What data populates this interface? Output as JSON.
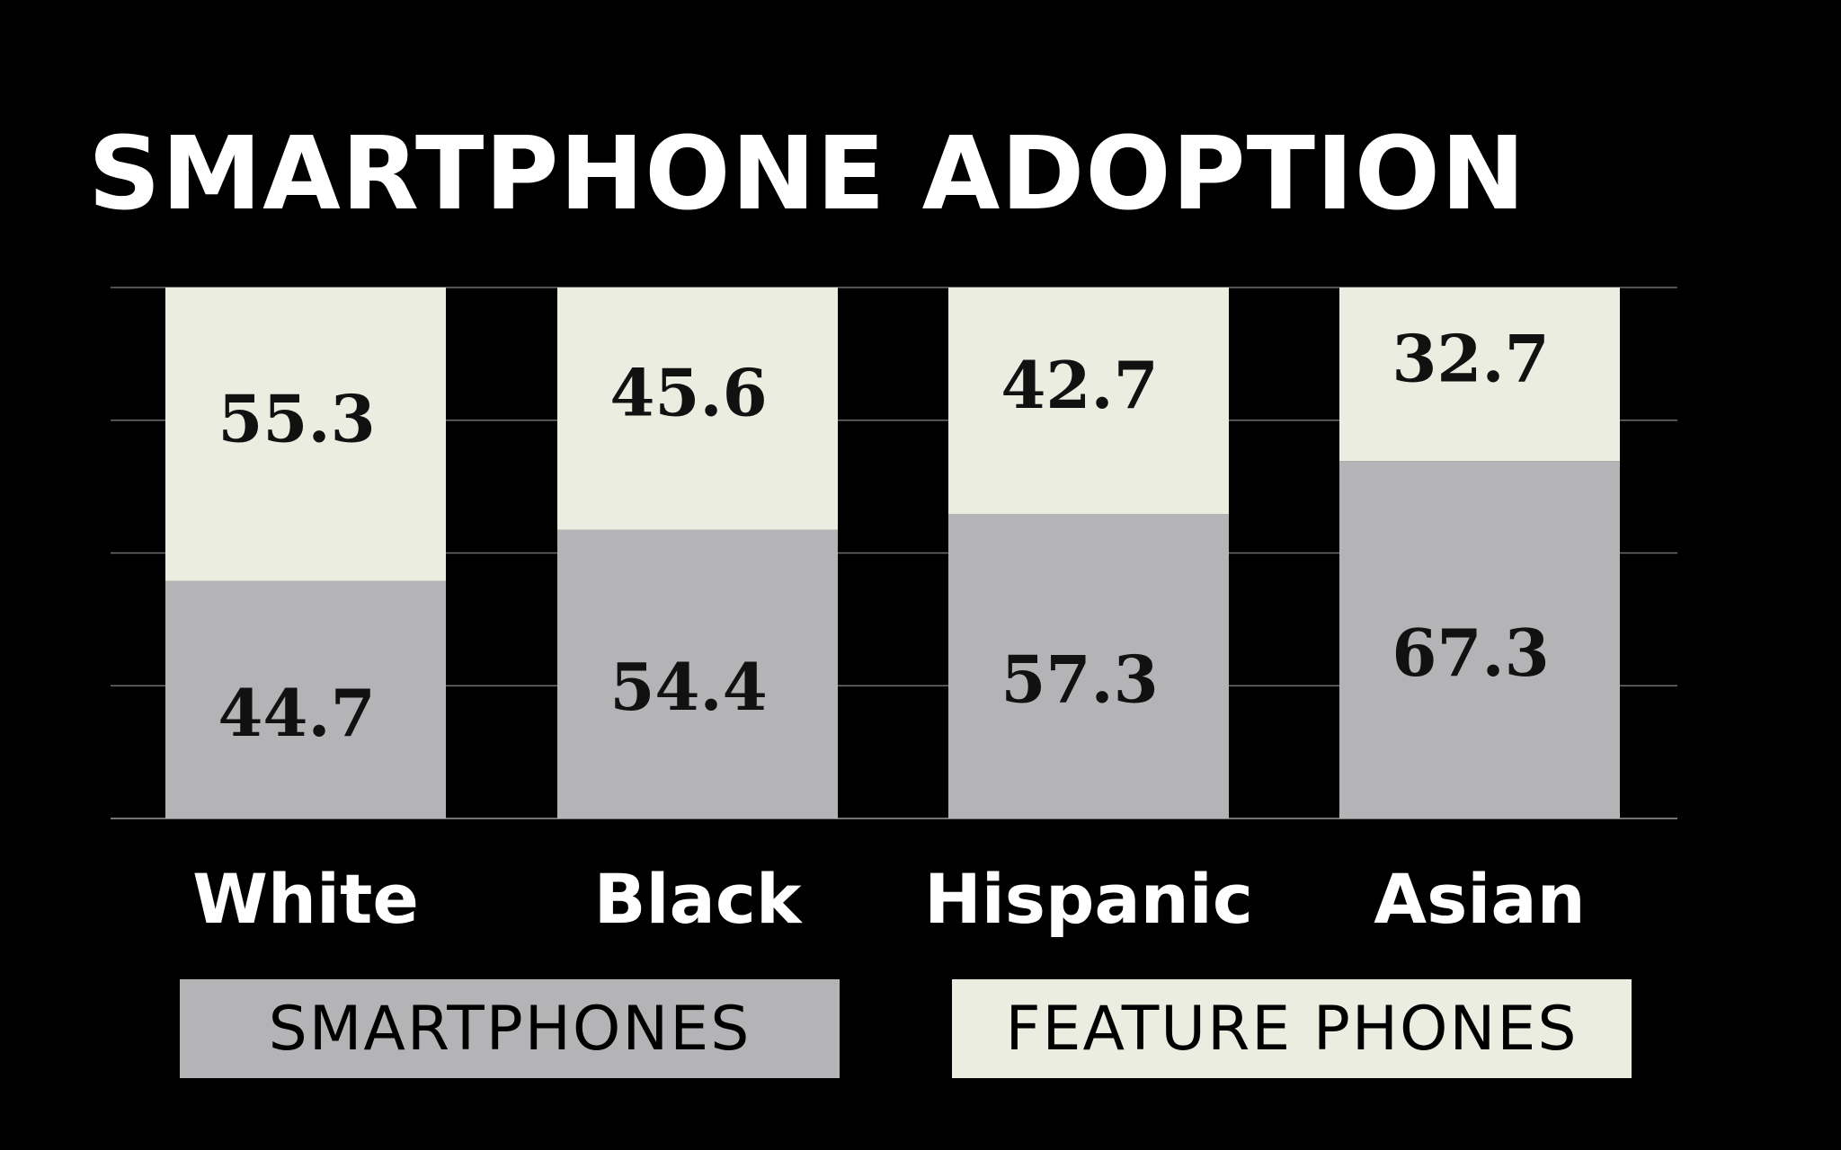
{
  "chart_data": {
    "type": "bar",
    "stacked": true,
    "title": "SMARTPHONE ADOPTION",
    "categories": [
      "White",
      "Black",
      "Hispanic",
      "Asian"
    ],
    "series": [
      {
        "name": "SMARTPHONES",
        "values": [
          44.7,
          54.4,
          57.3,
          67.3
        ],
        "color": "#b4b4b6",
        "value_labels": [
          "44.7",
          "54.4",
          "57.3",
          "67.3"
        ]
      },
      {
        "name": "FEATURE PHONES",
        "values": [
          55.3,
          45.6,
          42.7,
          32.7
        ],
        "color": "#eaeddf",
        "value_labels": [
          "55.3",
          "45.6",
          "42.7",
          "32.7"
        ]
      }
    ],
    "ylim": [
      0,
      100
    ],
    "grid": true,
    "legend_position": "bottom"
  },
  "colors": {
    "background": "#000000",
    "grid": "#6e6e6e",
    "title": "#ffffff",
    "category_label": "#ffffff",
    "value_label": "#111111"
  }
}
